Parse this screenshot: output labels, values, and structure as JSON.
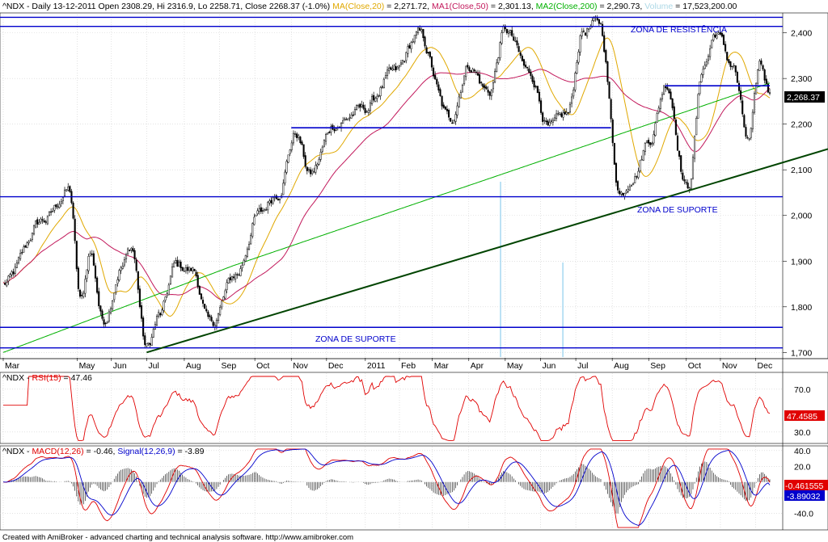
{
  "header": {
    "price": [
      {
        "text": "^NDX - Daily 13-12-2011 Open 2308.29, Hi 2316.9, Lo 2258.71, Close 2268.37 (-1.0%) ",
        "color": "#000000"
      },
      {
        "text": "MA(Close,20)",
        "color": "#e0a800"
      },
      {
        "text": " = 2,271.72, ",
        "color": "#000000"
      },
      {
        "text": "MA1(Close,50)",
        "color": "#c2185b"
      },
      {
        "text": " = 2,301.13, ",
        "color": "#000000"
      },
      {
        "text": "MA2(Close,200)",
        "color": "#00b000"
      },
      {
        "text": " = 2,290.73, ",
        "color": "#000000"
      },
      {
        "text": "Volume",
        "color": "#add8e6"
      },
      {
        "text": " = 17,523,200.00",
        "color": "#000000"
      }
    ],
    "rsi": [
      {
        "text": "^NDX - ",
        "color": "#000000"
      },
      {
        "text": "RSI(15)",
        "color": "#e00000"
      },
      {
        "text": " = 47.46",
        "color": "#000000"
      }
    ],
    "macd": [
      {
        "text": "^NDX - ",
        "color": "#000000"
      },
      {
        "text": "MACD(12,26)",
        "color": "#e00000"
      },
      {
        "text": " = -0.46, ",
        "color": "#000000"
      },
      {
        "text": "Signal(12,26,9)",
        "color": "#0000cc"
      },
      {
        "text": " = -3.89",
        "color": "#000000"
      }
    ]
  },
  "footer": {
    "credit": "Created with AmiBroker - advanced charting and technical analysis software. http://www.amibroker.com"
  },
  "chart_data": {
    "type": "candlestick",
    "symbol": "^NDX",
    "x_ticks": [
      "Mar",
      "May",
      "Jun",
      "Jul",
      "Aug",
      "Sep",
      "Oct",
      "Nov",
      "Dec",
      "2011",
      "Feb",
      "Mar",
      "Apr",
      "May",
      "Jun",
      "Jul",
      "Aug",
      "Sep",
      "Oct",
      "Nov",
      "Dec"
    ],
    "price_ticks": [
      "2,400",
      "2,300",
      "2,200",
      "2,100",
      "2,000",
      "1,900",
      "1,800",
      "1,700"
    ],
    "price_ylim": [
      1690,
      2440
    ],
    "last_close_label": "2,268.37",
    "rsi_ticks": [
      "70.0",
      "30.0"
    ],
    "rsi_ylim": [
      20,
      85
    ],
    "rsi_last_label": "47.4585",
    "macd_ticks": [
      "40.0",
      "20.0",
      "-20.0",
      "-40.0"
    ],
    "macd_ylim": [
      -60,
      45
    ],
    "macd_last_label": "-0.461555",
    "signal_last_label": "-3.89032",
    "annotations": [
      {
        "text": "ZONA DE RESISTÊNCIA",
        "kind": "zone"
      },
      {
        "text": "ZONA DE SUPORTE",
        "kind": "zone"
      },
      {
        "text": "ZONA DE SUPORTE",
        "kind": "zone"
      }
    ],
    "horizontal_levels": [
      2434,
      2414,
      2192,
      2041,
      1755,
      1710,
      2284
    ],
    "trendline": {
      "from": {
        "date": "2010-07-01",
        "value": 1700
      },
      "to": {
        "date": "2011-12-13",
        "value": 2135
      }
    },
    "close_anchors": [
      [
        "2010-03-01",
        1850
      ],
      [
        "2010-04-05",
        1990
      ],
      [
        "2010-04-26",
        2055
      ],
      [
        "2010-05-06",
        1810
      ],
      [
        "2010-05-14",
        1920
      ],
      [
        "2010-05-25",
        1770
      ],
      [
        "2010-06-10",
        1890
      ],
      [
        "2010-06-18",
        1930
      ],
      [
        "2010-07-01",
        1710
      ],
      [
        "2010-07-12",
        1780
      ],
      [
        "2010-07-26",
        1890
      ],
      [
        "2010-08-09",
        1880
      ],
      [
        "2010-08-24",
        1760
      ],
      [
        "2010-09-15",
        1870
      ],
      [
        "2010-10-04",
        2000
      ],
      [
        "2010-10-20",
        2050
      ],
      [
        "2010-11-05",
        2180
      ],
      [
        "2010-11-17",
        2090
      ],
      [
        "2010-12-08",
        2200
      ],
      [
        "2010-12-31",
        2230
      ],
      [
        "2011-01-28",
        2310
      ],
      [
        "2011-02-17",
        2395
      ],
      [
        "2011-03-16",
        2210
      ],
      [
        "2011-04-01",
        2330
      ],
      [
        "2011-04-18",
        2270
      ],
      [
        "2011-05-02",
        2405
      ],
      [
        "2011-05-23",
        2310
      ],
      [
        "2011-06-09",
        2190
      ],
      [
        "2011-06-24",
        2220
      ],
      [
        "2011-07-07",
        2405
      ],
      [
        "2011-07-21",
        2420
      ],
      [
        "2011-08-08",
        2050
      ],
      [
        "2011-08-19",
        2090
      ],
      [
        "2011-09-02",
        2170
      ],
      [
        "2011-09-16",
        2290
      ],
      [
        "2011-10-04",
        2060
      ],
      [
        "2011-10-18",
        2330
      ],
      [
        "2011-10-28",
        2400
      ],
      [
        "2011-11-11",
        2330
      ],
      [
        "2011-11-25",
        2160
      ],
      [
        "2011-12-05",
        2330
      ],
      [
        "2011-12-13",
        2268
      ]
    ]
  }
}
